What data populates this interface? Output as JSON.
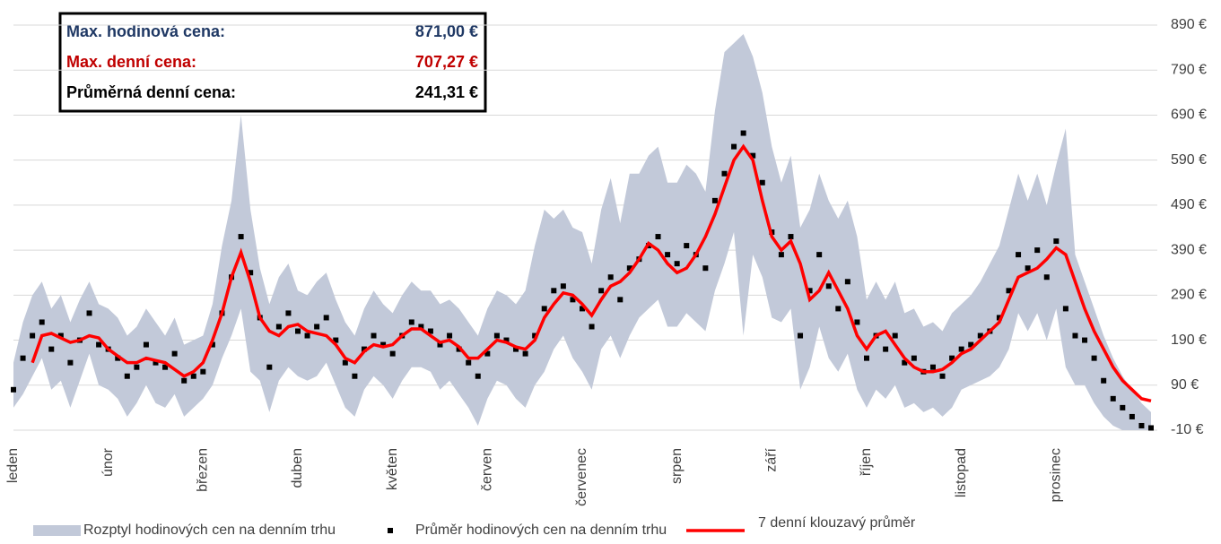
{
  "chart_data": {
    "type": "band-scatter-line",
    "categories": [
      "leden",
      "únor",
      "březen",
      "duben",
      "květen",
      "červen",
      "červenec",
      "srpen",
      "září",
      "říjen",
      "listopad",
      "prosinec"
    ],
    "ylim": [
      -10,
      890
    ],
    "yticks": [
      {
        "value": -10,
        "label": "-10 €"
      },
      {
        "value": 90,
        "label": "90 €"
      },
      {
        "value": 190,
        "label": "190 €"
      },
      {
        "value": 290,
        "label": "290 €"
      },
      {
        "value": 390,
        "label": "390 €"
      },
      {
        "value": 490,
        "label": "490 €"
      },
      {
        "value": 590,
        "label": "590 €"
      },
      {
        "value": 690,
        "label": "690 €"
      },
      {
        "value": 790,
        "label": "790 €"
      },
      {
        "value": 890,
        "label": "890 €"
      }
    ],
    "grid": true,
    "summary": [
      {
        "label": "Max. hodinová cena:",
        "value": "871,00 €",
        "color": "#1f3864"
      },
      {
        "label": "Max. denní cena:",
        "value": "707,27 €",
        "color": "#c00000"
      },
      {
        "label": "Průměrná denní cena:",
        "value": "241,31 €",
        "color": "#000000"
      }
    ],
    "series": [
      {
        "name": "Rozptyl hodinových cen na denním trhu",
        "color": "#c2c9d9",
        "high": [
          140,
          230,
          290,
          320,
          260,
          290,
          230,
          280,
          320,
          270,
          260,
          240,
          200,
          220,
          260,
          230,
          200,
          240,
          180,
          190,
          200,
          270,
          400,
          500,
          690,
          480,
          350,
          270,
          330,
          360,
          300,
          290,
          320,
          340,
          280,
          230,
          200,
          260,
          300,
          270,
          250,
          290,
          320,
          300,
          300,
          270,
          280,
          260,
          230,
          200,
          260,
          300,
          290,
          270,
          300,
          400,
          480,
          460,
          480,
          440,
          430,
          360,
          480,
          550,
          450,
          560,
          560,
          600,
          620,
          540,
          540,
          580,
          560,
          520,
          700,
          830,
          850,
          870,
          820,
          740,
          620,
          540,
          600,
          440,
          480,
          560,
          500,
          460,
          500,
          420,
          280,
          320,
          280,
          320,
          250,
          260,
          220,
          230,
          210,
          250,
          270,
          290,
          320,
          360,
          400,
          480,
          560,
          500,
          560,
          490,
          580,
          660,
          380,
          320,
          260,
          200,
          150,
          110,
          80,
          50,
          30
        ],
        "low": [
          40,
          70,
          110,
          150,
          80,
          100,
          40,
          100,
          160,
          90,
          80,
          60,
          20,
          50,
          90,
          50,
          40,
          70,
          20,
          40,
          60,
          90,
          150,
          200,
          260,
          120,
          100,
          30,
          100,
          130,
          110,
          100,
          110,
          140,
          90,
          40,
          20,
          80,
          110,
          90,
          60,
          100,
          130,
          130,
          120,
          80,
          100,
          70,
          40,
          0,
          60,
          100,
          90,
          60,
          40,
          90,
          120,
          170,
          200,
          150,
          120,
          80,
          170,
          200,
          150,
          200,
          240,
          260,
          280,
          220,
          220,
          250,
          230,
          210,
          300,
          360,
          430,
          200,
          380,
          330,
          240,
          230,
          260,
          80,
          130,
          220,
          150,
          120,
          160,
          80,
          40,
          80,
          60,
          90,
          40,
          50,
          30,
          40,
          20,
          40,
          80,
          90,
          100,
          110,
          130,
          170,
          250,
          210,
          250,
          190,
          260,
          130,
          90,
          90,
          50,
          20,
          0,
          -10,
          -10,
          -10,
          -10
        ]
      },
      {
        "name": "Průměr hodinových cen na denním trhu",
        "color": "#000000",
        "values": [
          80,
          150,
          200,
          230,
          170,
          200,
          140,
          190,
          250,
          180,
          170,
          150,
          110,
          130,
          180,
          140,
          130,
          160,
          100,
          110,
          120,
          180,
          250,
          330,
          420,
          340,
          240,
          130,
          220,
          250,
          210,
          200,
          220,
          240,
          190,
          140,
          110,
          170,
          200,
          180,
          160,
          200,
          230,
          220,
          210,
          180,
          200,
          170,
          140,
          110,
          160,
          200,
          190,
          170,
          160,
          200,
          260,
          300,
          310,
          280,
          260,
          220,
          300,
          330,
          280,
          350,
          370,
          400,
          420,
          380,
          360,
          400,
          380,
          350,
          500,
          560,
          620,
          650,
          600,
          540,
          430,
          380,
          420,
          200,
          300,
          380,
          310,
          260,
          320,
          230,
          150,
          200,
          170,
          200,
          140,
          150,
          120,
          130,
          110,
          150,
          170,
          180,
          200,
          210,
          240,
          300,
          380,
          350,
          390,
          330,
          410,
          260,
          200,
          190,
          150,
          100,
          60,
          40,
          20,
          0,
          -5
        ]
      },
      {
        "name": "7 denní klouzavý průměr",
        "color": "#ff0000",
        "values": [
          null,
          null,
          140,
          200,
          205,
          195,
          185,
          190,
          200,
          195,
          170,
          155,
          140,
          140,
          150,
          145,
          140,
          125,
          110,
          120,
          140,
          190,
          250,
          330,
          385,
          320,
          240,
          210,
          200,
          220,
          225,
          210,
          205,
          200,
          180,
          150,
          140,
          165,
          180,
          175,
          180,
          200,
          215,
          215,
          200,
          185,
          190,
          175,
          150,
          150,
          170,
          190,
          185,
          175,
          170,
          190,
          240,
          270,
          295,
          290,
          270,
          245,
          280,
          310,
          320,
          340,
          370,
          405,
          390,
          360,
          340,
          350,
          380,
          420,
          470,
          530,
          590,
          620,
          590,
          500,
          420,
          390,
          410,
          360,
          280,
          300,
          340,
          300,
          260,
          200,
          170,
          200,
          210,
          180,
          150,
          130,
          120,
          120,
          125,
          140,
          160,
          170,
          190,
          210,
          230,
          280,
          330,
          340,
          350,
          370,
          395,
          380,
          320,
          260,
          210,
          170,
          130,
          100,
          80,
          60,
          55
        ]
      }
    ]
  }
}
